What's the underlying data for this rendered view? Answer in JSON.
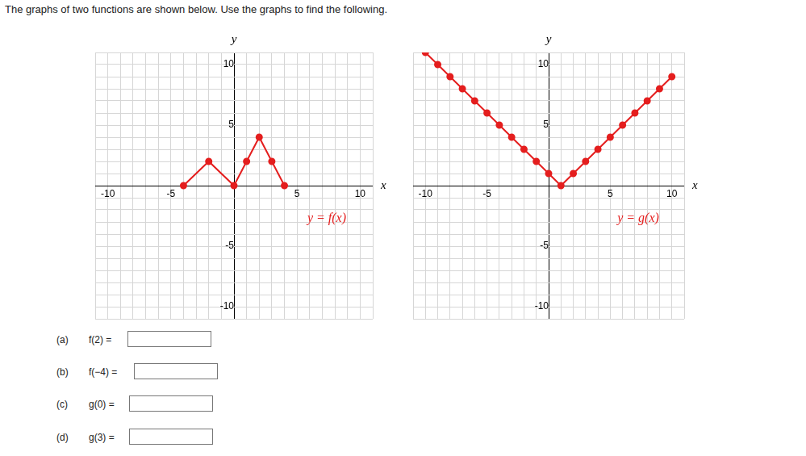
{
  "instruction": "The graphs of two functions are shown below. Use the graphs to find the following.",
  "chart_data": [
    {
      "type": "line",
      "annotation": "y = f(x)",
      "x_label": "x",
      "y_label": "y",
      "x": [
        -4,
        -2,
        0,
        1,
        2,
        3,
        4
      ],
      "values": [
        0,
        2,
        0,
        2,
        4,
        2,
        0
      ],
      "color": "#e41e1e",
      "marker": "circle",
      "grid": true,
      "xlim": [
        -11,
        11
      ],
      "ylim": [
        -11,
        11
      ],
      "xticks": [
        {
          "value": -11,
          "label": null
        },
        -10,
        {
          "value": -9,
          "label": null
        },
        {
          "value": -8,
          "label": null
        },
        {
          "value": -7,
          "label": null
        },
        {
          "value": -6,
          "label": null
        },
        -5,
        {
          "value": -4,
          "label": null
        },
        {
          "value": -3,
          "label": null
        },
        {
          "value": -2,
          "label": null
        },
        {
          "value": -1,
          "label": null
        },
        {
          "value": 0,
          "label": null
        },
        {
          "value": 1,
          "label": null
        },
        {
          "value": 2,
          "label": null
        },
        {
          "value": 3,
          "label": null
        },
        {
          "value": 4,
          "label": null
        },
        5,
        {
          "value": 6,
          "label": null
        },
        {
          "value": 7,
          "label": null
        },
        {
          "value": 8,
          "label": null
        },
        {
          "value": 9,
          "label": null
        },
        10,
        {
          "value": 11,
          "label": null
        }
      ],
      "yticks": [
        {
          "value": -11,
          "label": null
        },
        -10,
        {
          "value": -9,
          "label": null
        },
        {
          "value": -8,
          "label": null
        },
        {
          "value": -7,
          "label": null
        },
        {
          "value": -6,
          "label": null
        },
        -5,
        {
          "value": -4,
          "label": null
        },
        {
          "value": -3,
          "label": null
        },
        {
          "value": -2,
          "label": null
        },
        {
          "value": -1,
          "label": null
        },
        {
          "value": 0,
          "label": null
        },
        {
          "value": 1,
          "label": null
        },
        {
          "value": 2,
          "label": null
        },
        {
          "value": 3,
          "label": null
        },
        {
          "value": 4,
          "label": null
        },
        5,
        {
          "value": 6,
          "label": null
        },
        {
          "value": 7,
          "label": null
        },
        {
          "value": 8,
          "label": null
        },
        {
          "value": 9,
          "label": null
        },
        10,
        {
          "value": 11,
          "label": null
        }
      ]
    },
    {
      "type": "line",
      "annotation": "y = g(x)",
      "x_label": "x",
      "y_label": "y",
      "x": [
        -10,
        -9,
        -8,
        -7,
        -6,
        -5,
        -4,
        -3,
        -2,
        -1,
        0,
        1,
        2,
        3,
        4,
        5,
        6,
        7,
        8,
        9,
        10
      ],
      "values": [
        11,
        10,
        9,
        8,
        7,
        6,
        5,
        4,
        3,
        2,
        1,
        0,
        1,
        2,
        3,
        4,
        5,
        6,
        7,
        8,
        9
      ],
      "color": "#e41e1e",
      "marker": "circle",
      "grid": true,
      "xlim": [
        -11,
        11
      ],
      "ylim": [
        -11,
        11
      ],
      "xticks": [
        {
          "value": -11,
          "label": null
        },
        -10,
        {
          "value": -9,
          "label": null
        },
        {
          "value": -8,
          "label": null
        },
        {
          "value": -7,
          "label": null
        },
        {
          "value": -6,
          "label": null
        },
        -5,
        {
          "value": -4,
          "label": null
        },
        {
          "value": -3,
          "label": null
        },
        {
          "value": -2,
          "label": null
        },
        {
          "value": -1,
          "label": null
        },
        {
          "value": 0,
          "label": null
        },
        {
          "value": 1,
          "label": null
        },
        {
          "value": 2,
          "label": null
        },
        {
          "value": 3,
          "label": null
        },
        {
          "value": 4,
          "label": null
        },
        5,
        {
          "value": 6,
          "label": null
        },
        {
          "value": 7,
          "label": null
        },
        {
          "value": 8,
          "label": null
        },
        {
          "value": 9,
          "label": null
        },
        10,
        {
          "value": 11,
          "label": null
        }
      ],
      "yticks": [
        {
          "value": -11,
          "label": null
        },
        -10,
        {
          "value": -9,
          "label": null
        },
        {
          "value": -8,
          "label": null
        },
        {
          "value": -7,
          "label": null
        },
        {
          "value": -6,
          "label": null
        },
        -5,
        {
          "value": -4,
          "label": null
        },
        {
          "value": -3,
          "label": null
        },
        {
          "value": -2,
          "label": null
        },
        {
          "value": -1,
          "label": null
        },
        {
          "value": 0,
          "label": null
        },
        {
          "value": 1,
          "label": null
        },
        {
          "value": 2,
          "label": null
        },
        {
          "value": 3,
          "label": null
        },
        {
          "value": 4,
          "label": null
        },
        5,
        {
          "value": 6,
          "label": null
        },
        {
          "value": 7,
          "label": null
        },
        {
          "value": 8,
          "label": null
        },
        {
          "value": 9,
          "label": null
        },
        10,
        {
          "value": 11,
          "label": null
        }
      ]
    }
  ],
  "questions": [
    {
      "letter": "(a)",
      "text": "f(2) ="
    },
    {
      "letter": "(b)",
      "text": "f(−4) ="
    },
    {
      "letter": "(c)",
      "text": "g(0) ="
    },
    {
      "letter": "(d)",
      "text": "g(3) ="
    }
  ]
}
